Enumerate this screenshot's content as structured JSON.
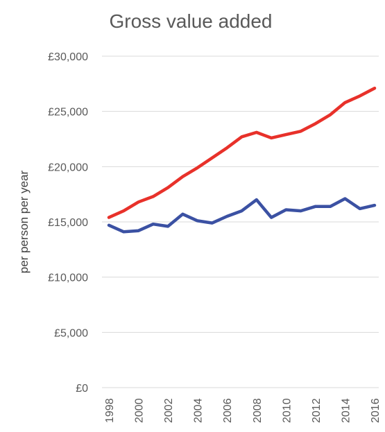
{
  "chart_data": {
    "type": "line",
    "title": "Gross value added",
    "xlabel": "",
    "ylabel": "per person per year",
    "ylim": [
      0,
      30000
    ],
    "y_ticks": [
      "£0",
      "£5,000",
      "£10,000",
      "£15,000",
      "£20,000",
      "£25,000",
      "£30,000"
    ],
    "x_ticks": [
      "1998",
      "2000",
      "2002",
      "2004",
      "2006",
      "2008",
      "2010",
      "2012",
      "2014",
      "2016"
    ],
    "x": [
      1998,
      1999,
      2000,
      2001,
      2002,
      2003,
      2004,
      2005,
      2006,
      2007,
      2008,
      2009,
      2010,
      2011,
      2012,
      2013,
      2014,
      2015,
      2016
    ],
    "grid": true,
    "series": [
      {
        "color": "#e8312a",
        "values": [
          15400,
          16000,
          16800,
          17300,
          18100,
          19100,
          19900,
          20800,
          21700,
          22700,
          23100,
          22600,
          22900,
          23200,
          23900,
          24700,
          25800,
          26400,
          27100
        ]
      },
      {
        "color": "#3b51a3",
        "values": [
          14700,
          14100,
          14200,
          14800,
          14600,
          15700,
          15100,
          14900,
          15500,
          16000,
          17000,
          15400,
          16100,
          16000,
          16400,
          16400,
          17100,
          16200,
          16500
        ]
      }
    ]
  }
}
